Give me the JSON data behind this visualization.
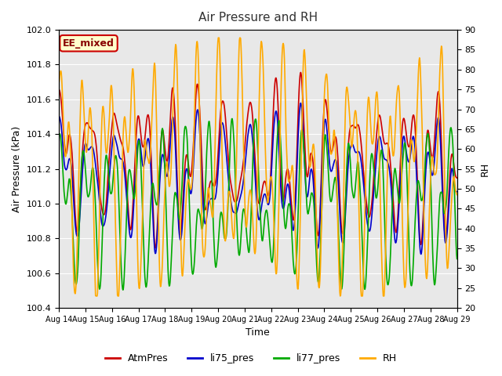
{
  "title": "Air Pressure and RH",
  "xlabel": "Time",
  "ylabel_left": "Air Pressure (kPa)",
  "ylabel_right": "RH",
  "annotation": "EE_mixed",
  "ylim_left": [
    100.4,
    102.0
  ],
  "ylim_right": [
    20,
    90
  ],
  "yticks_left": [
    100.4,
    100.6,
    100.8,
    101.0,
    101.2,
    101.4,
    101.6,
    101.8,
    102.0
  ],
  "yticks_right": [
    20,
    25,
    30,
    35,
    40,
    45,
    50,
    55,
    60,
    65,
    70,
    75,
    80,
    85,
    90
  ],
  "xtick_labels": [
    "Aug 14",
    "Aug 15",
    "Aug 16",
    "Aug 17",
    "Aug 18",
    "Aug 19",
    "Aug 20",
    "Aug 21",
    "Aug 22",
    "Aug 23",
    "Aug 24",
    "Aug 25",
    "Aug 26",
    "Aug 27",
    "Aug 28",
    "Aug 29"
  ],
  "colors": {
    "AtmPres": "#cc0000",
    "li75_pres": "#0000cc",
    "li77_pres": "#00aa00",
    "RH": "#ffaa00"
  },
  "legend_labels": [
    "AtmPres",
    "li75_pres",
    "li77_pres",
    "RH"
  ],
  "background_color": "#e8e8e8",
  "annotation_bg": "#ffffcc",
  "annotation_border": "#cc0000",
  "annotation_text_color": "#880000",
  "grid_color": "white",
  "title_color": "#333333"
}
